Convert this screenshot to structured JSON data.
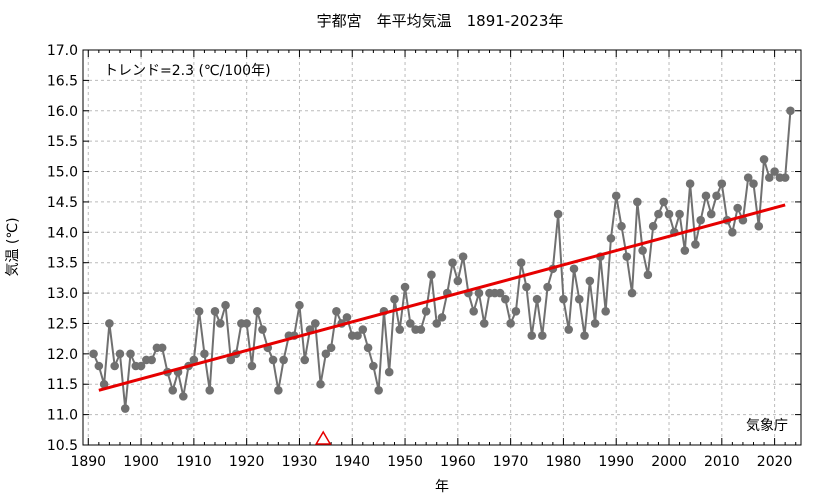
{
  "chart_data": {
    "type": "line",
    "title": "宇都宮　年平均気温　1891-2023年",
    "xlabel": "年",
    "ylabel": "気温 (℃)",
    "annotation": "トレンド=2.3 (℃/100年)",
    "credit": "気象庁",
    "xlim": [
      1889,
      2025
    ],
    "ylim": [
      10.5,
      17.0
    ],
    "grid": true,
    "x_ticks": [
      "1890",
      "1900",
      "1910",
      "1920",
      "1930",
      "1940",
      "1950",
      "1960",
      "1970",
      "1980",
      "1990",
      "2000",
      "2010",
      "2020"
    ],
    "y_ticks": [
      "10.5",
      "11.0",
      "11.5",
      "12.0",
      "12.5",
      "13.0",
      "13.5",
      "14.0",
      "14.5",
      "15.0",
      "15.5",
      "16.0",
      "16.5",
      "17.0"
    ],
    "x": [
      1891,
      1892,
      1893,
      1894,
      1895,
      1896,
      1897,
      1898,
      1899,
      1900,
      1901,
      1902,
      1903,
      1904,
      1905,
      1906,
      1907,
      1908,
      1909,
      1910,
      1911,
      1912,
      1913,
      1914,
      1915,
      1916,
      1917,
      1918,
      1919,
      1920,
      1921,
      1922,
      1923,
      1924,
      1925,
      1926,
      1927,
      1928,
      1929,
      1930,
      1931,
      1932,
      1933,
      1934,
      1935,
      1936,
      1937,
      1938,
      1939,
      1940,
      1941,
      1942,
      1943,
      1944,
      1945,
      1946,
      1947,
      1948,
      1949,
      1950,
      1951,
      1952,
      1953,
      1954,
      1955,
      1956,
      1957,
      1958,
      1959,
      1960,
      1961,
      1962,
      1963,
      1964,
      1965,
      1966,
      1967,
      1968,
      1969,
      1970,
      1971,
      1972,
      1973,
      1974,
      1975,
      1976,
      1977,
      1978,
      1979,
      1980,
      1981,
      1982,
      1983,
      1984,
      1985,
      1986,
      1987,
      1988,
      1989,
      1990,
      1991,
      1992,
      1993,
      1994,
      1995,
      1996,
      1997,
      1998,
      1999,
      2000,
      2001,
      2002,
      2003,
      2004,
      2005,
      2006,
      2007,
      2008,
      2009,
      2010,
      2011,
      2012,
      2013,
      2014,
      2015,
      2016,
      2017,
      2018,
      2019,
      2020,
      2021,
      2022,
      2023
    ],
    "series": [
      {
        "values": [
          12.0,
          11.8,
          11.5,
          12.5,
          11.8,
          12.0,
          11.1,
          12.0,
          11.8,
          11.8,
          11.9,
          11.9,
          12.1,
          12.1,
          11.7,
          11.4,
          11.7,
          11.3,
          11.8,
          11.9,
          12.7,
          12.0,
          11.4,
          12.7,
          12.5,
          12.8,
          11.9,
          12.0,
          12.5,
          12.5,
          11.8,
          12.7,
          12.4,
          12.1,
          11.9,
          11.4,
          11.9,
          12.3,
          12.3,
          12.8,
          11.9,
          12.4,
          12.5,
          11.5,
          12.0,
          12.1,
          12.7,
          12.5,
          12.6,
          12.3,
          12.3,
          12.4,
          12.1,
          11.8,
          11.4,
          12.7,
          11.7,
          12.9,
          12.4,
          13.1,
          12.5,
          12.4,
          12.4,
          12.7,
          13.3,
          12.5,
          12.6,
          13.0,
          13.5,
          13.2,
          13.6,
          13.0,
          12.7,
          13.0,
          12.5,
          13.0,
          13.0,
          13.0,
          12.9,
          12.5,
          12.7,
          13.5,
          13.1,
          12.3,
          12.9,
          12.3,
          13.1,
          13.4,
          14.3,
          12.9,
          12.4,
          13.4,
          12.9,
          12.3,
          13.2,
          12.5,
          13.6,
          12.7,
          13.9,
          14.6,
          14.1,
          13.6,
          13.0,
          14.5,
          13.7,
          13.3,
          14.1,
          14.3,
          14.5,
          14.3,
          14.0,
          14.3,
          13.7,
          14.8,
          13.8,
          14.2,
          14.6,
          14.3,
          14.6,
          14.8,
          14.2,
          14.0,
          14.4,
          14.2,
          14.9,
          14.8,
          14.1,
          15.2,
          14.9,
          15.0,
          14.9,
          14.9,
          16.0
        ]
      }
    ],
    "trend": {
      "x": [
        1892,
        2022
      ],
      "y": [
        11.4,
        14.45
      ]
    },
    "marker": {
      "x": 1934.5,
      "y": 10.5,
      "shape": "triangle"
    },
    "colors": {
      "data": "#707070",
      "trend": "#e60000",
      "grid": "#bbbbbb",
      "marker": "#e60000"
    }
  }
}
